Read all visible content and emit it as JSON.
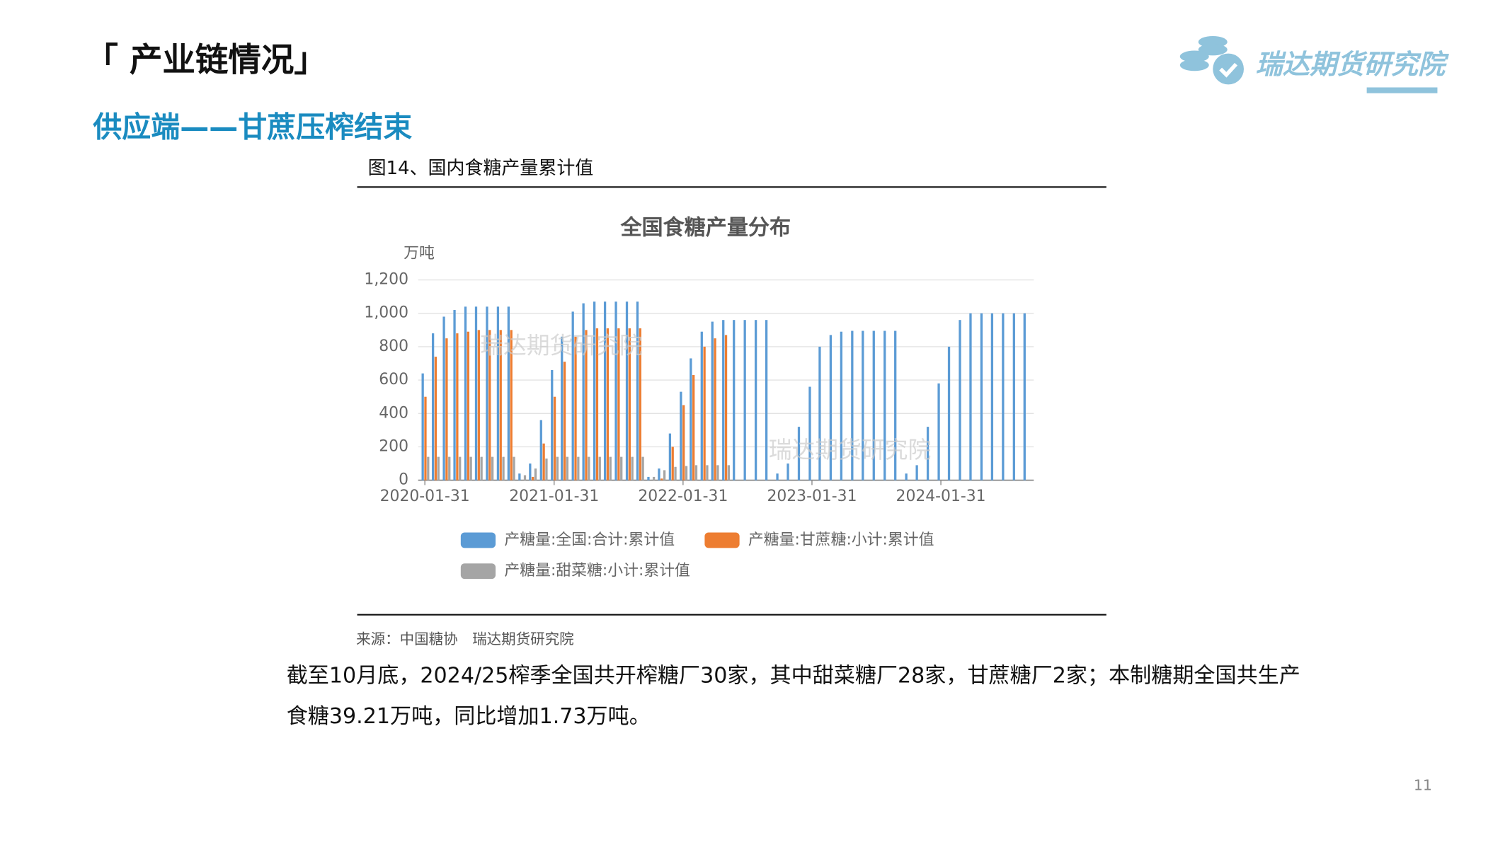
{
  "header": {
    "title": "「 产业链情况」",
    "logo": "瑞达期货研究院"
  },
  "subtitle": "供应端——甘蔗压榨结束",
  "figure_caption": "图14、国内食糖产量累计值",
  "chart_data": {
    "type": "bar",
    "title": "全国食糖产量分布",
    "y_unit": "万吨",
    "watermark": "瑞达期货研究院",
    "x": [
      "2020-01-31",
      "2020-02-29",
      "2020-03-31",
      "2020-04-30",
      "2020-05-31",
      "2020-06-30",
      "2020-07-31",
      "2020-08-31",
      "2020-09-30",
      "2020-10-31",
      "2020-11-30",
      "2020-12-31",
      "2021-01-31",
      "2021-02-28",
      "2021-03-31",
      "2021-04-30",
      "2021-05-31",
      "2021-06-30",
      "2021-07-31",
      "2021-08-31",
      "2021-09-30",
      "2021-10-31",
      "2021-11-30",
      "2021-12-31",
      "2022-01-31",
      "2022-02-28",
      "2022-03-31",
      "2022-04-30",
      "2022-05-31",
      "2022-06-30",
      "2022-07-31",
      "2022-08-31",
      "2022-09-30",
      "2022-10-31",
      "2022-11-30",
      "2022-12-31",
      "2023-01-31",
      "2023-02-28",
      "2023-03-31",
      "2023-04-30",
      "2023-05-31",
      "2023-06-30",
      "2023-07-31",
      "2023-08-31",
      "2023-09-30",
      "2023-10-31",
      "2023-11-30",
      "2023-12-31",
      "2024-01-31",
      "2024-02-29",
      "2024-03-31",
      "2024-04-30",
      "2024-05-31",
      "2024-06-30",
      "2024-07-31",
      "2024-08-31",
      "2024-09-30"
    ],
    "series": [
      {
        "name": "产糖量:全国:合计:累计值",
        "color": "#5b9bd5",
        "values": [
          640,
          880,
          980,
          1020,
          1040,
          1040,
          1040,
          1040,
          1040,
          40,
          100,
          360,
          660,
          860,
          1010,
          1060,
          1070,
          1070,
          1070,
          1070,
          1070,
          20,
          70,
          280,
          530,
          730,
          890,
          950,
          960,
          960,
          960,
          960,
          960,
          40,
          100,
          320,
          560,
          800,
          870,
          890,
          895,
          895,
          895,
          895,
          895,
          40,
          90,
          320,
          580,
          800,
          960,
          1000,
          1000,
          1000,
          1000,
          1000,
          1000
        ]
      },
      {
        "name": "产糖量:甘蔗糖:小计:累计值",
        "color": "#ed7d31",
        "values": [
          500,
          740,
          850,
          880,
          890,
          900,
          900,
          900,
          900,
          null,
          20,
          220,
          500,
          710,
          860,
          900,
          910,
          910,
          910,
          910,
          910,
          null,
          10,
          200,
          450,
          630,
          800,
          850,
          870,
          null,
          null,
          null,
          null,
          null,
          null,
          null,
          null,
          null,
          null,
          null,
          null,
          null,
          null,
          null,
          null,
          null,
          null,
          null,
          null,
          null,
          null,
          null,
          null,
          null,
          null,
          null,
          null
        ]
      },
      {
        "name": "产糖量:甜菜糖:小计:累计值",
        "color": "#a5a5a5",
        "values": [
          140,
          140,
          140,
          140,
          140,
          140,
          140,
          140,
          140,
          30,
          70,
          130,
          140,
          140,
          140,
          140,
          140,
          140,
          140,
          140,
          140,
          20,
          60,
          80,
          85,
          90,
          90,
          90,
          90,
          null,
          null,
          null,
          null,
          null,
          null,
          null,
          null,
          null,
          null,
          null,
          null,
          null,
          null,
          null,
          null,
          null,
          null,
          null,
          null,
          null,
          null,
          null,
          null,
          null,
          null,
          null,
          null
        ]
      }
    ],
    "xlim": [
      "2020-01-12",
      "2024-10-20"
    ],
    "xticks": [
      "2020-01-31",
      "2021-01-31",
      "2022-01-31",
      "2023-01-31",
      "2024-01-31"
    ],
    "ylim": [
      0,
      1200
    ],
    "yticks": [
      0,
      200,
      400,
      600,
      800,
      {
        "value": 1000,
        "label": "1,000"
      },
      {
        "value": 1200,
        "label": "1,200"
      }
    ],
    "grid": true
  },
  "source": "来源：中国糖协　瑞达期货研究院",
  "body": "截至10月底，2024/25榨季全国共开榨糖厂30家，其中甜菜糖厂28家，甘蔗糖厂2家；本制糖期全国共生产食糖39.21万吨，同比增加1.73万吨。",
  "page_number": "11"
}
